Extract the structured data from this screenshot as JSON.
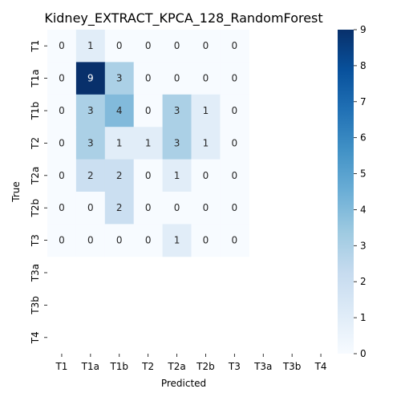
{
  "chart_data": {
    "type": "heatmap",
    "title": "Kidney_EXTRACT_KPCA_128_RandomForest",
    "xlabel": "Predicted",
    "ylabel": "True",
    "x_categories": [
      "T1",
      "T1a",
      "T1b",
      "T2",
      "T2a",
      "T2b",
      "T3",
      "T3a",
      "T3b",
      "T4"
    ],
    "y_categories": [
      "T1",
      "T1a",
      "T1b",
      "T2",
      "T2a",
      "T2b",
      "T3",
      "T3a",
      "T3b",
      "T4"
    ],
    "values": [
      [
        0,
        1,
        0,
        0,
        0,
        0,
        0,
        null,
        null,
        null
      ],
      [
        0,
        9,
        3,
        0,
        0,
        0,
        0,
        null,
        null,
        null
      ],
      [
        0,
        3,
        4,
        0,
        3,
        1,
        0,
        null,
        null,
        null
      ],
      [
        0,
        3,
        1,
        1,
        3,
        1,
        0,
        null,
        null,
        null
      ],
      [
        0,
        2,
        2,
        0,
        1,
        0,
        0,
        null,
        null,
        null
      ],
      [
        0,
        0,
        2,
        0,
        0,
        0,
        0,
        null,
        null,
        null
      ],
      [
        0,
        0,
        0,
        0,
        1,
        0,
        0,
        null,
        null,
        null
      ],
      [
        null,
        null,
        null,
        null,
        null,
        null,
        null,
        null,
        null,
        null
      ],
      [
        null,
        null,
        null,
        null,
        null,
        null,
        null,
        null,
        null,
        null
      ],
      [
        null,
        null,
        null,
        null,
        null,
        null,
        null,
        null,
        null,
        null
      ]
    ],
    "colorbar": {
      "min": 0,
      "max": 9,
      "ticks": [
        0,
        1,
        2,
        3,
        4,
        5,
        6,
        7,
        8,
        9
      ]
    },
    "colormap": "Blues",
    "grid": false
  }
}
